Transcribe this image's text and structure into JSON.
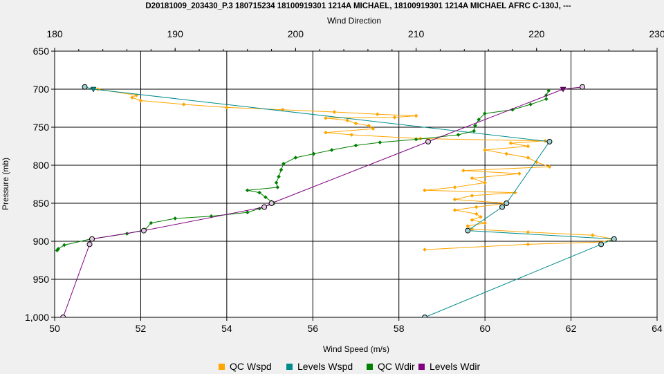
{
  "chart_data": {
    "type": "line",
    "title": "D20181009_203430_P.3 180715234 18100919301 1214A MICHAEL, 18100919301 1214A MICHAEL AFRC C-130J, ---",
    "xlabel": "Wind Speed (m/s)",
    "x2label": "Wind Direction",
    "ylabel": "Pressure (mb)",
    "xlim": [
      50,
      64
    ],
    "x2lim": [
      180,
      230
    ],
    "ylim": [
      650,
      1000
    ],
    "y_inverted": true,
    "grid": true,
    "legend_position": "bottom",
    "xticks": [
      "50",
      "52",
      "54",
      "56",
      "58",
      "60",
      "62",
      "64"
    ],
    "x2ticks": [
      "180",
      "190",
      "200",
      "210",
      "220",
      "230"
    ],
    "yticks": [
      "650",
      "700",
      "750",
      "800",
      "850",
      "900",
      "950",
      "1,000"
    ],
    "series": [
      {
        "name": "QC Wspd",
        "axis": "speed",
        "color": "#ffa500",
        "values": [
          [
            51.0,
            700
          ],
          [
            51.9,
            708
          ],
          [
            51.8,
            711
          ],
          [
            52.0,
            715
          ],
          [
            53.0,
            720
          ],
          [
            54.0,
            724
          ],
          [
            55.3,
            727
          ],
          [
            56.5,
            730
          ],
          [
            57.5,
            733
          ],
          [
            58.4,
            735
          ],
          [
            57.9,
            737
          ],
          [
            56.3,
            738
          ],
          [
            56.8,
            741
          ],
          [
            57.0,
            745
          ],
          [
            57.3,
            748
          ],
          [
            57.4,
            752
          ],
          [
            56.3,
            757
          ],
          [
            56.9,
            760
          ],
          [
            58.5,
            765
          ],
          [
            61.4,
            768
          ],
          [
            60.6,
            771
          ],
          [
            61.0,
            775
          ],
          [
            60.0,
            780
          ],
          [
            60.5,
            785
          ],
          [
            61.0,
            790
          ],
          [
            61.2,
            796
          ],
          [
            61.5,
            802
          ],
          [
            59.5,
            807
          ],
          [
            60.8,
            811
          ],
          [
            59.7,
            817
          ],
          [
            60.0,
            823
          ],
          [
            59.3,
            829
          ],
          [
            58.6,
            833
          ],
          [
            60.7,
            836
          ],
          [
            59.7,
            840
          ],
          [
            59.3,
            845
          ],
          [
            60.5,
            850
          ],
          [
            59.8,
            855
          ],
          [
            59.3,
            859
          ],
          [
            59.8,
            864
          ],
          [
            59.9,
            868
          ],
          [
            59.7,
            872
          ],
          [
            60.0,
            876
          ],
          [
            59.6,
            880
          ],
          [
            59.7,
            884
          ],
          [
            61.0,
            888
          ],
          [
            62.5,
            892
          ],
          [
            63.0,
            897
          ],
          [
            62.7,
            901
          ],
          [
            61.0,
            904
          ],
          [
            58.6,
            911
          ]
        ]
      },
      {
        "name": "Levels Wspd",
        "axis": "speed",
        "color": "#008b8b",
        "values": [
          [
            50.7,
            697
          ],
          [
            50.9,
            700
          ],
          [
            61.5,
            769
          ],
          [
            60.5,
            850
          ],
          [
            60.4,
            855
          ],
          [
            59.6,
            886
          ],
          [
            63.0,
            897
          ],
          [
            62.7,
            904
          ],
          [
            58.6,
            1000
          ]
        ]
      },
      {
        "name": "QC Wdir",
        "axis": "direction",
        "color": "#008000",
        "values": [
          [
            221.0,
            702
          ],
          [
            220.8,
            708
          ],
          [
            220.8,
            713
          ],
          [
            219.5,
            720
          ],
          [
            218.0,
            727
          ],
          [
            215.7,
            732
          ],
          [
            215.2,
            740
          ],
          [
            214.9,
            748
          ],
          [
            214.8,
            755
          ],
          [
            213.5,
            760
          ],
          [
            210.0,
            766
          ],
          [
            207.0,
            770
          ],
          [
            205.0,
            774
          ],
          [
            203.0,
            780
          ],
          [
            201.5,
            785
          ],
          [
            200.0,
            790
          ],
          [
            199.0,
            798
          ],
          [
            198.8,
            806
          ],
          [
            198.6,
            815
          ],
          [
            198.4,
            823
          ],
          [
            198.5,
            829
          ],
          [
            196.0,
            833
          ],
          [
            197.0,
            836
          ],
          [
            197.5,
            842
          ],
          [
            198.0,
            848
          ],
          [
            198.2,
            850
          ],
          [
            197.0,
            857
          ],
          [
            196.0,
            862
          ],
          [
            193.0,
            867
          ],
          [
            190.0,
            870
          ],
          [
            188.0,
            876
          ],
          [
            187.5,
            885
          ],
          [
            186.0,
            890
          ],
          [
            183.0,
            897
          ],
          [
            180.8,
            905
          ],
          [
            180.3,
            910
          ],
          [
            180.2,
            912
          ]
        ]
      },
      {
        "name": "Levels Wdir",
        "axis": "direction",
        "color": "#800080",
        "values": [
          [
            223.8,
            697
          ],
          [
            222.2,
            700
          ],
          [
            211.0,
            769
          ],
          [
            198.0,
            850
          ],
          [
            197.4,
            855
          ],
          [
            187.4,
            886
          ],
          [
            183.1,
            897
          ],
          [
            182.9,
            904
          ],
          [
            180.7,
            1000
          ]
        ]
      }
    ]
  }
}
